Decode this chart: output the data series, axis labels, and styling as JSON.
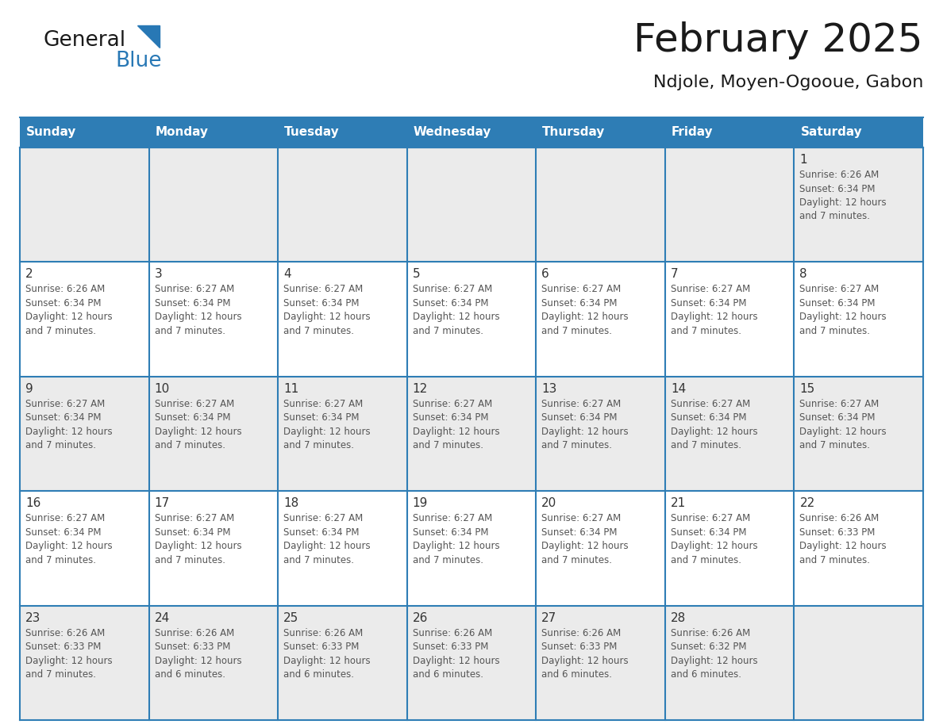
{
  "title": "February 2025",
  "subtitle": "Ndjole, Moyen-Ogooue, Gabon",
  "header_color": "#2E7DB5",
  "header_text_color": "#FFFFFF",
  "border_color": "#2E7DB5",
  "day_number_color": "#333333",
  "text_color": "#555555",
  "alt_row_color": "#EBEBEB",
  "white_row_color": "#FFFFFF",
  "days_of_week": [
    "Sunday",
    "Monday",
    "Tuesday",
    "Wednesday",
    "Thursday",
    "Friday",
    "Saturday"
  ],
  "weeks": [
    [
      {
        "day": 0,
        "info": ""
      },
      {
        "day": 0,
        "info": ""
      },
      {
        "day": 0,
        "info": ""
      },
      {
        "day": 0,
        "info": ""
      },
      {
        "day": 0,
        "info": ""
      },
      {
        "day": 0,
        "info": ""
      },
      {
        "day": 1,
        "info": "Sunrise: 6:26 AM\nSunset: 6:34 PM\nDaylight: 12 hours\nand 7 minutes."
      }
    ],
    [
      {
        "day": 2,
        "info": "Sunrise: 6:26 AM\nSunset: 6:34 PM\nDaylight: 12 hours\nand 7 minutes."
      },
      {
        "day": 3,
        "info": "Sunrise: 6:27 AM\nSunset: 6:34 PM\nDaylight: 12 hours\nand 7 minutes."
      },
      {
        "day": 4,
        "info": "Sunrise: 6:27 AM\nSunset: 6:34 PM\nDaylight: 12 hours\nand 7 minutes."
      },
      {
        "day": 5,
        "info": "Sunrise: 6:27 AM\nSunset: 6:34 PM\nDaylight: 12 hours\nand 7 minutes."
      },
      {
        "day": 6,
        "info": "Sunrise: 6:27 AM\nSunset: 6:34 PM\nDaylight: 12 hours\nand 7 minutes."
      },
      {
        "day": 7,
        "info": "Sunrise: 6:27 AM\nSunset: 6:34 PM\nDaylight: 12 hours\nand 7 minutes."
      },
      {
        "day": 8,
        "info": "Sunrise: 6:27 AM\nSunset: 6:34 PM\nDaylight: 12 hours\nand 7 minutes."
      }
    ],
    [
      {
        "day": 9,
        "info": "Sunrise: 6:27 AM\nSunset: 6:34 PM\nDaylight: 12 hours\nand 7 minutes."
      },
      {
        "day": 10,
        "info": "Sunrise: 6:27 AM\nSunset: 6:34 PM\nDaylight: 12 hours\nand 7 minutes."
      },
      {
        "day": 11,
        "info": "Sunrise: 6:27 AM\nSunset: 6:34 PM\nDaylight: 12 hours\nand 7 minutes."
      },
      {
        "day": 12,
        "info": "Sunrise: 6:27 AM\nSunset: 6:34 PM\nDaylight: 12 hours\nand 7 minutes."
      },
      {
        "day": 13,
        "info": "Sunrise: 6:27 AM\nSunset: 6:34 PM\nDaylight: 12 hours\nand 7 minutes."
      },
      {
        "day": 14,
        "info": "Sunrise: 6:27 AM\nSunset: 6:34 PM\nDaylight: 12 hours\nand 7 minutes."
      },
      {
        "day": 15,
        "info": "Sunrise: 6:27 AM\nSunset: 6:34 PM\nDaylight: 12 hours\nand 7 minutes."
      }
    ],
    [
      {
        "day": 16,
        "info": "Sunrise: 6:27 AM\nSunset: 6:34 PM\nDaylight: 12 hours\nand 7 minutes."
      },
      {
        "day": 17,
        "info": "Sunrise: 6:27 AM\nSunset: 6:34 PM\nDaylight: 12 hours\nand 7 minutes."
      },
      {
        "day": 18,
        "info": "Sunrise: 6:27 AM\nSunset: 6:34 PM\nDaylight: 12 hours\nand 7 minutes."
      },
      {
        "day": 19,
        "info": "Sunrise: 6:27 AM\nSunset: 6:34 PM\nDaylight: 12 hours\nand 7 minutes."
      },
      {
        "day": 20,
        "info": "Sunrise: 6:27 AM\nSunset: 6:34 PM\nDaylight: 12 hours\nand 7 minutes."
      },
      {
        "day": 21,
        "info": "Sunrise: 6:27 AM\nSunset: 6:34 PM\nDaylight: 12 hours\nand 7 minutes."
      },
      {
        "day": 22,
        "info": "Sunrise: 6:26 AM\nSunset: 6:33 PM\nDaylight: 12 hours\nand 7 minutes."
      }
    ],
    [
      {
        "day": 23,
        "info": "Sunrise: 6:26 AM\nSunset: 6:33 PM\nDaylight: 12 hours\nand 7 minutes."
      },
      {
        "day": 24,
        "info": "Sunrise: 6:26 AM\nSunset: 6:33 PM\nDaylight: 12 hours\nand 6 minutes."
      },
      {
        "day": 25,
        "info": "Sunrise: 6:26 AM\nSunset: 6:33 PM\nDaylight: 12 hours\nand 6 minutes."
      },
      {
        "day": 26,
        "info": "Sunrise: 6:26 AM\nSunset: 6:33 PM\nDaylight: 12 hours\nand 6 minutes."
      },
      {
        "day": 27,
        "info": "Sunrise: 6:26 AM\nSunset: 6:33 PM\nDaylight: 12 hours\nand 6 minutes."
      },
      {
        "day": 28,
        "info": "Sunrise: 6:26 AM\nSunset: 6:32 PM\nDaylight: 12 hours\nand 6 minutes."
      },
      {
        "day": 0,
        "info": ""
      }
    ]
  ],
  "logo_color_general": "#1a1a1a",
  "logo_color_blue": "#2878b5",
  "logo_triangle_color": "#2878b5",
  "title_fontsize": 36,
  "subtitle_fontsize": 16,
  "header_fontsize": 11,
  "day_num_fontsize": 11,
  "info_fontsize": 8.5
}
